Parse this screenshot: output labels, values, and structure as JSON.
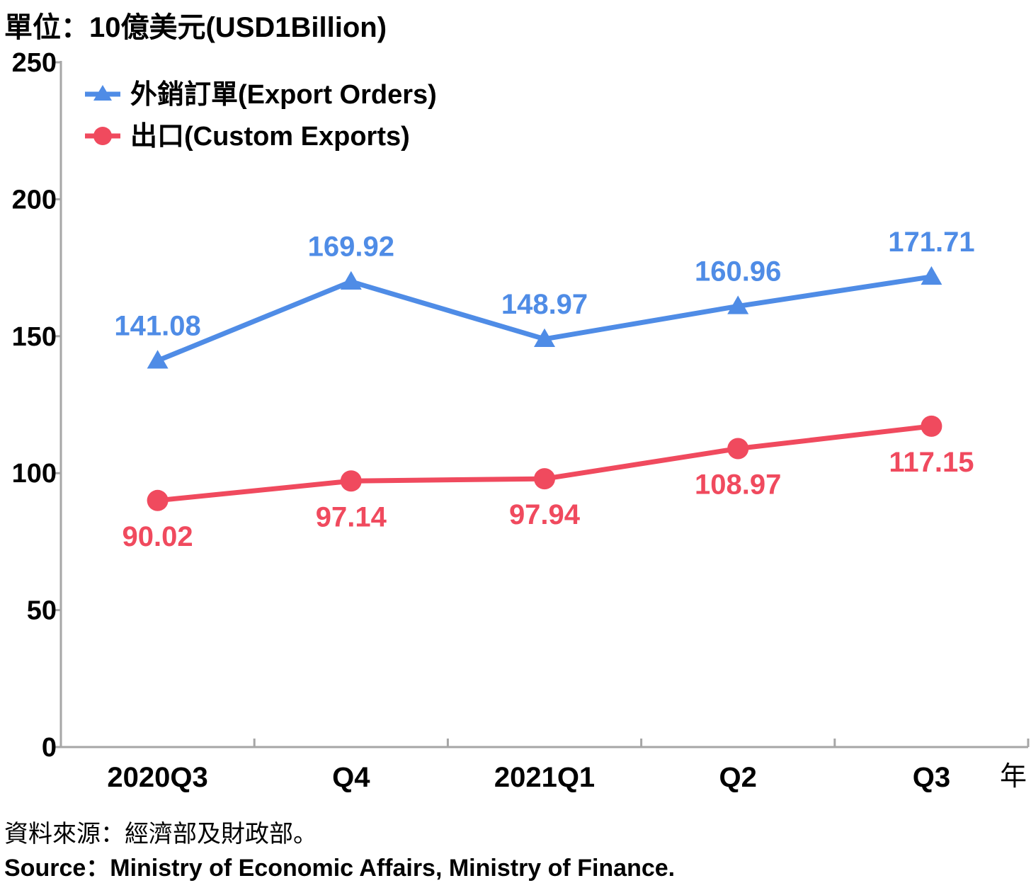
{
  "unit_label": "單位：10億美元(USD1Billion)",
  "source_zh": "資料來源：經濟部及財政部。",
  "source_en": "Source：Ministry of Economic Affairs, Ministry of Finance.",
  "chart_data": {
    "type": "line",
    "categories": [
      "2020Q3",
      "Q4",
      "2021Q1",
      "Q2",
      "Q3"
    ],
    "x_unit_label": "年",
    "ylim": [
      0,
      250
    ],
    "yticks": [
      0,
      50,
      100,
      150,
      200,
      250
    ],
    "grid": false,
    "legend_position": "top-left",
    "series": [
      {
        "name": "外銷訂單(Export Orders)",
        "values": [
          141.08,
          169.92,
          148.97,
          160.96,
          171.71
        ],
        "labels": [
          "141.08",
          "169.92",
          "148.97",
          "160.96",
          "171.71"
        ],
        "color": "#4f8ce6",
        "marker": "triangle",
        "label_position": "above"
      },
      {
        "name": "出口(Custom Exports)",
        "values": [
          90.02,
          97.14,
          97.94,
          108.97,
          117.15
        ],
        "labels": [
          "90.02",
          "97.14",
          "97.94",
          "108.97",
          "117.15"
        ],
        "color": "#f04a5e",
        "marker": "circle",
        "label_position": "below"
      }
    ]
  }
}
